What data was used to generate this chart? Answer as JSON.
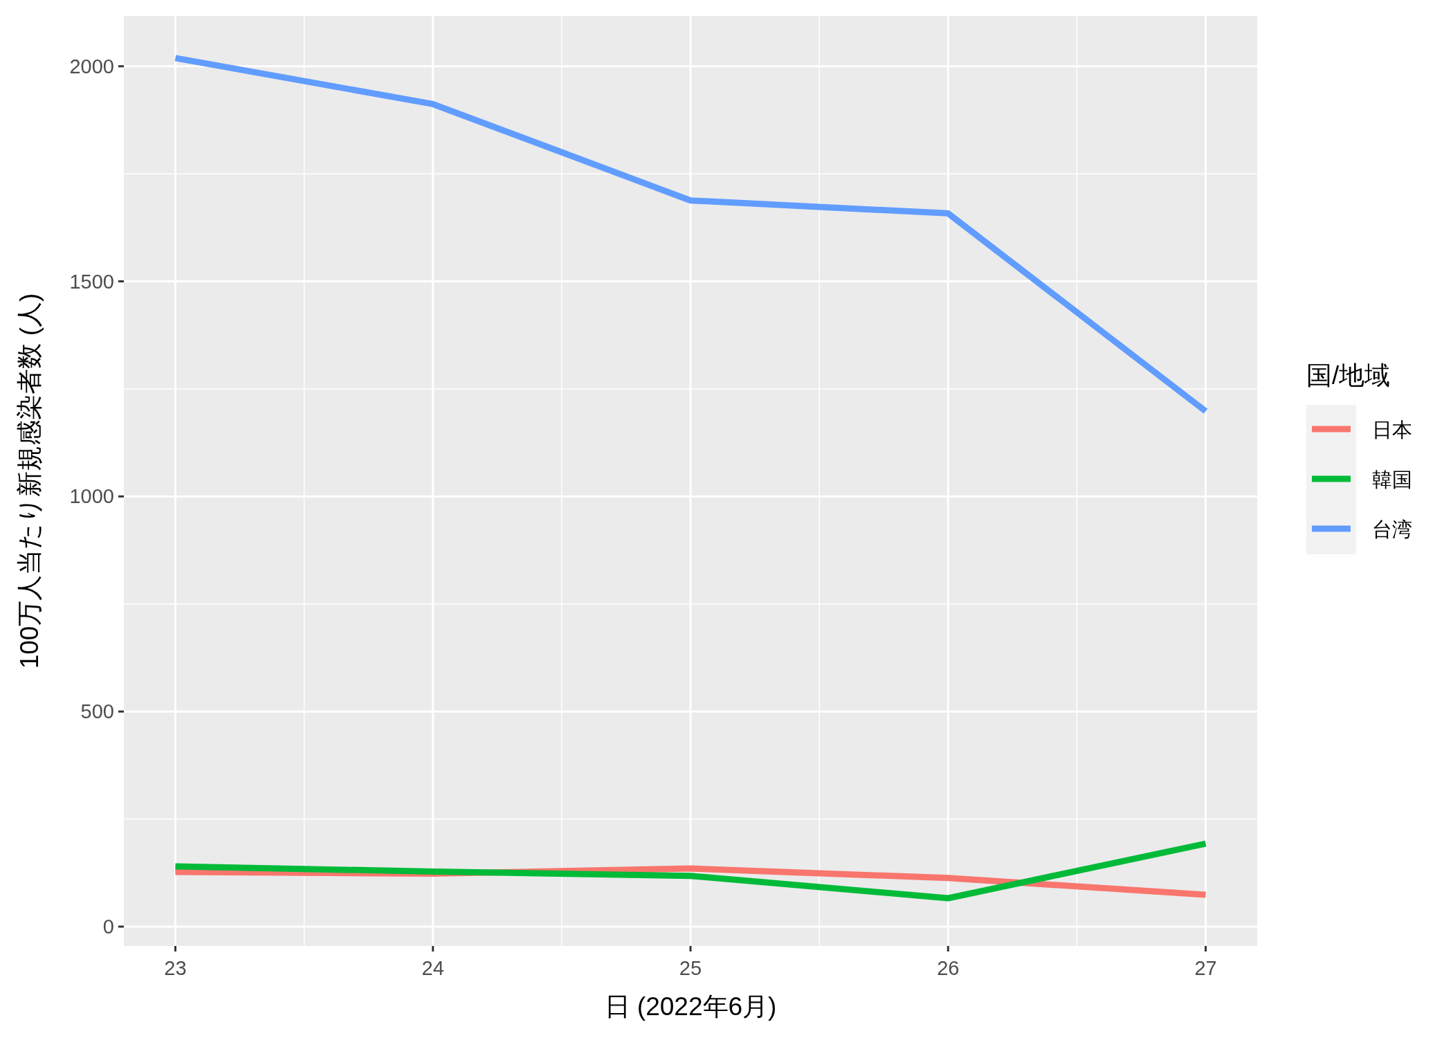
{
  "chart_data": {
    "type": "line",
    "xlabel": "日 (2022年6月)",
    "ylabel": "100万人当たり新規感染者数 (人)",
    "legend_title": "国/地域",
    "x": [
      23,
      24,
      25,
      26,
      27
    ],
    "series": [
      {
        "name": "日本",
        "color": "#f8766d",
        "values": [
          127,
          123,
          135,
          113,
          74
        ]
      },
      {
        "name": "韓国",
        "color": "#00ba38",
        "values": [
          140,
          128,
          118,
          66,
          193
        ]
      },
      {
        "name": "台湾",
        "color": "#619cff",
        "values": [
          2019,
          1912,
          1688,
          1658,
          1198
        ]
      }
    ],
    "xlim": [
      22.8,
      27.2
    ],
    "xticks": [
      23,
      24,
      25,
      26,
      27
    ],
    "ylim": [
      -45,
      2117
    ],
    "yticks": [
      0,
      500,
      1000,
      1500,
      2000
    ],
    "grid": true,
    "legend": "right"
  }
}
